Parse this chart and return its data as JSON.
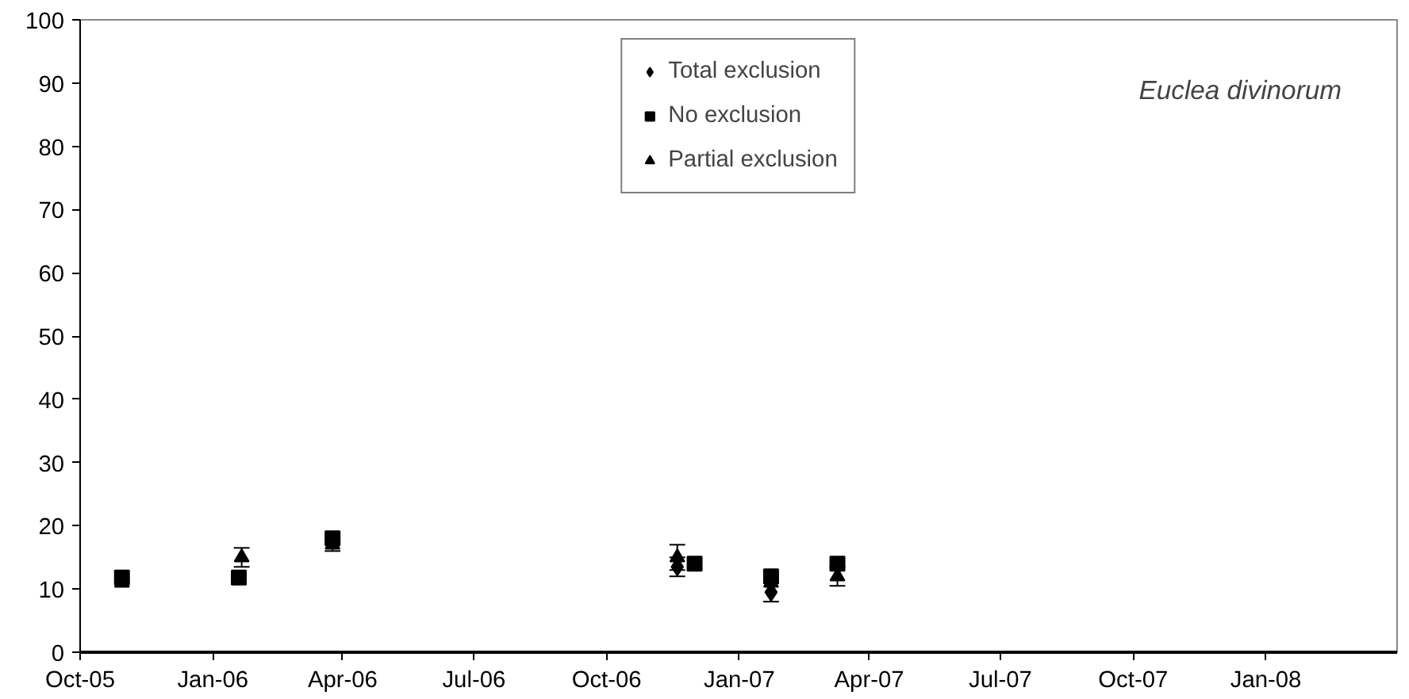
{
  "chart_data": {
    "type": "scatter",
    "annotations": [
      "Euclea divinorum"
    ],
    "xlim": [
      "2005-10-01",
      "2008-04-01"
    ],
    "xticks": [
      {
        "value": "2005-10-01",
        "label": "Oct-05"
      },
      {
        "value": "2006-01-01",
        "label": "Jan-06"
      },
      {
        "value": "2006-04-01",
        "label": "Apr-06"
      },
      {
        "value": "2006-07-01",
        "label": "Jul-06"
      },
      {
        "value": "2006-10-01",
        "label": "Oct-06"
      },
      {
        "value": "2007-01-01",
        "label": "Jan-07"
      },
      {
        "value": "2007-04-01",
        "label": "Apr-07"
      },
      {
        "value": "2007-07-01",
        "label": "Jul-07"
      },
      {
        "value": "2007-10-01",
        "label": "Oct-07"
      },
      {
        "value": "2008-01-01",
        "label": "Jan-08"
      }
    ],
    "ylim": [
      0,
      100
    ],
    "yticks": [
      0,
      10,
      20,
      30,
      40,
      50,
      60,
      70,
      80,
      90,
      100
    ],
    "grid": false,
    "legend": "top",
    "series": [
      {
        "name": "Total exclusion",
        "color": "#000000",
        "marker": "diamond",
        "x": [
          "2006-11-19",
          "2007-01-23"
        ],
        "values": [
          13.5,
          9.5
        ],
        "errors": [
          1.5,
          1.5
        ]
      },
      {
        "name": "No exclusion",
        "color": "#000000",
        "marker": "square",
        "x": [
          "2005-10-30",
          "2006-01-19",
          "2006-03-25",
          "2006-12-01",
          "2007-01-23",
          "2007-03-10"
        ],
        "values": [
          11.8,
          11.8,
          18,
          14,
          12,
          14
        ],
        "errors": [
          null,
          null,
          null,
          null,
          null,
          null
        ]
      },
      {
        "name": "Partial exclusion",
        "color": "#000000",
        "marker": "triangle",
        "x": [
          "2005-10-30",
          "2006-01-21",
          "2006-03-25",
          "2006-11-19",
          "2007-01-23",
          "2007-03-10"
        ],
        "values": [
          11,
          15,
          17,
          15,
          11,
          12
        ],
        "errors": [
          null,
          1.5,
          1,
          2,
          null,
          1.5
        ]
      }
    ]
  }
}
